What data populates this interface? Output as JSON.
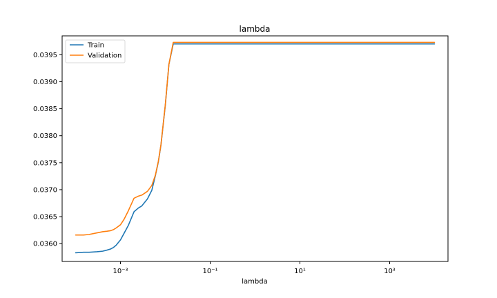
{
  "chart_data": {
    "type": "line",
    "title": "lambda",
    "xlabel": "lambda",
    "ylabel": "",
    "xscale": "log",
    "xlim": [
      5e-05,
      20000
    ],
    "ylim": [
      0.03567,
      0.03985
    ],
    "grid": false,
    "legend_position": "top-left",
    "x_ticks": [
      {
        "value": 0.001,
        "label": "10⁻³"
      },
      {
        "value": 0.1,
        "label": "10⁻¹"
      },
      {
        "value": 10,
        "label": "10¹"
      },
      {
        "value": 1000,
        "label": "10³"
      }
    ],
    "y_ticks": [
      {
        "value": 0.036,
        "label": "0.0360"
      },
      {
        "value": 0.0365,
        "label": "0.0365"
      },
      {
        "value": 0.037,
        "label": "0.0370"
      },
      {
        "value": 0.0375,
        "label": "0.0375"
      },
      {
        "value": 0.038,
        "label": "0.0380"
      },
      {
        "value": 0.0385,
        "label": "0.0385"
      },
      {
        "value": 0.039,
        "label": "0.0390"
      },
      {
        "value": 0.0395,
        "label": "0.0395"
      }
    ],
    "series": [
      {
        "name": "Train",
        "color": "#1f77b4",
        "x": [
          0.0001,
          0.00015,
          0.0002,
          0.0003,
          0.0004,
          0.0005,
          0.0006,
          0.0007,
          0.0008,
          0.001,
          0.0012,
          0.0015,
          0.002,
          0.0025,
          0.003,
          0.004,
          0.005,
          0.006,
          0.007,
          0.008,
          0.01,
          0.012,
          0.015,
          0.018,
          1000,
          10000
        ],
        "y": [
          0.03583,
          0.03584,
          0.03584,
          0.03585,
          0.03586,
          0.03588,
          0.0359,
          0.03593,
          0.03597,
          0.03607,
          0.03619,
          0.03634,
          0.03659,
          0.03666,
          0.0367,
          0.03683,
          0.03699,
          0.03726,
          0.03752,
          0.03783,
          0.03857,
          0.03932,
          0.0397,
          0.0397,
          0.0397,
          0.0397
        ]
      },
      {
        "name": "Validation",
        "color": "#ff7f0e",
        "x": [
          0.0001,
          0.00015,
          0.0002,
          0.0003,
          0.0004,
          0.0005,
          0.0006,
          0.0007,
          0.0008,
          0.001,
          0.0012,
          0.0015,
          0.002,
          0.0025,
          0.003,
          0.004,
          0.005,
          0.006,
          0.007,
          0.008,
          0.01,
          0.012,
          0.015,
          0.018,
          1000,
          10000
        ],
        "y": [
          0.03616,
          0.03616,
          0.03617,
          0.0362,
          0.03622,
          0.03623,
          0.03624,
          0.03626,
          0.03629,
          0.03635,
          0.03645,
          0.03661,
          0.03684,
          0.03688,
          0.0369,
          0.03697,
          0.03708,
          0.03727,
          0.03753,
          0.03784,
          0.03858,
          0.03932,
          0.03973,
          0.03973,
          0.03973,
          0.03973
        ]
      }
    ]
  }
}
